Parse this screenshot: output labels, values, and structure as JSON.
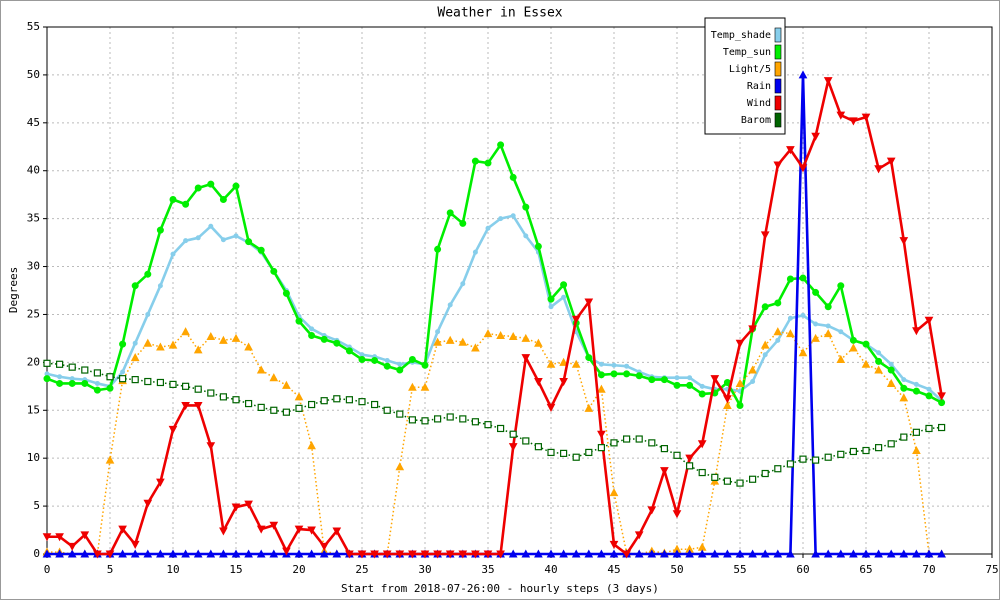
{
  "chart_data": {
    "type": "line",
    "title": "Weather in Essex",
    "x_label": "Start from 2018-07-26:00 - hourly steps (3 days)",
    "y_label": "Degrees",
    "x": [
      0,
      1,
      2,
      3,
      4,
      5,
      6,
      7,
      8,
      9,
      10,
      11,
      12,
      13,
      14,
      15,
      16,
      17,
      18,
      19,
      20,
      21,
      22,
      23,
      24,
      25,
      26,
      27,
      28,
      29,
      30,
      31,
      32,
      33,
      34,
      35,
      36,
      37,
      38,
      39,
      40,
      41,
      42,
      43,
      44,
      45,
      46,
      47,
      48,
      49,
      50,
      51,
      52,
      53,
      54,
      55,
      56,
      57,
      58,
      59,
      60,
      61,
      62,
      63,
      64,
      65,
      66,
      67,
      68,
      69,
      70,
      71
    ],
    "xlim": [
      0,
      75
    ],
    "xticks": [
      0,
      5,
      10,
      15,
      20,
      25,
      30,
      35,
      40,
      45,
      50,
      55,
      60,
      65,
      70,
      75
    ],
    "ylim": [
      0,
      55
    ],
    "yticks": [
      0,
      5,
      10,
      15,
      20,
      25,
      30,
      35,
      40,
      45,
      50,
      55
    ],
    "grid": true,
    "legend": "upper right",
    "series": [
      {
        "name": "Temp_shade",
        "color": "#87ceeb",
        "marker": "dot",
        "line_style": "solid",
        "values": [
          18.8,
          18.5,
          18.3,
          18.2,
          17.8,
          17.5,
          19,
          22,
          25,
          28,
          31.3,
          32.7,
          33,
          34.2,
          32.8,
          33.2,
          32.5,
          31.5,
          29.5,
          27.5,
          24.8,
          23.5,
          22.8,
          22.3,
          21.6,
          20.8,
          20.6,
          20.2,
          19.8,
          20,
          19.8,
          23.2,
          26,
          28.2,
          31.5,
          34,
          35,
          35.3,
          33.2,
          31.5,
          25.8,
          26.8,
          23.2,
          20.5,
          19.8,
          19.7,
          19.6,
          19,
          18.5,
          18.4,
          18.4,
          18.4,
          17.5,
          17.2,
          17.2,
          17,
          18,
          20.8,
          22.3,
          24.6,
          24.9,
          24,
          23.8,
          23.2,
          22.3,
          21.9,
          21,
          19.8,
          18.2,
          17.7,
          17.2,
          16
        ]
      },
      {
        "name": "Temp_sun",
        "color": "#00ee00",
        "marker": "circle",
        "line_style": "solid",
        "values": [
          18.3,
          17.8,
          17.8,
          17.8,
          17.1,
          17.3,
          21.9,
          28,
          29.2,
          33.8,
          37,
          36.5,
          38.2,
          38.6,
          37,
          38.4,
          32.6,
          31.7,
          29.5,
          27.2,
          24.3,
          22.8,
          22.4,
          22,
          21.2,
          20.3,
          20.2,
          19.6,
          19.2,
          20.3,
          19.7,
          31.8,
          35.6,
          34.5,
          41,
          40.8,
          42.7,
          39.3,
          36.2,
          32.1,
          26.6,
          28.1,
          24.1,
          20.5,
          18.7,
          18.8,
          18.8,
          18.6,
          18.2,
          18.2,
          17.6,
          17.6,
          16.7,
          16.8,
          17.9,
          15.5,
          23.5,
          25.8,
          26.2,
          28.7,
          28.8,
          27.3,
          25.8,
          28,
          22.3,
          21.9,
          20.1,
          19.2,
          17.3,
          17,
          16.5,
          15.8
        ]
      },
      {
        "name": "Light/5",
        "color": "#ffa500",
        "marker": "triangle-up",
        "line_style": "dotted",
        "values": [
          0.2,
          0.2,
          0,
          0,
          0,
          9.8,
          18.1,
          20.5,
          22,
          21.6,
          21.8,
          23.2,
          21.3,
          22.7,
          22.3,
          22.5,
          21.6,
          19.2,
          18.4,
          17.6,
          16.4,
          11.3,
          0.3,
          0,
          0,
          0,
          0,
          0,
          9.1,
          17.4,
          17.4,
          22.1,
          22.3,
          22.1,
          21.5,
          23,
          22.8,
          22.7,
          22.5,
          22,
          19.8,
          20,
          19.8,
          15.2,
          17.2,
          6.4,
          0.1,
          0,
          0.3,
          0.1,
          0.5,
          0.5,
          0.7,
          7.6,
          15.5,
          17.8,
          19.2,
          21.8,
          23.2,
          23,
          21,
          22.5,
          23,
          20.3,
          21.5,
          19.8,
          19.2,
          17.8,
          16.3,
          10.8,
          0,
          0
        ]
      },
      {
        "name": "Rain",
        "color": "#0000ee",
        "marker": "triangle-up",
        "line_style": "solid",
        "values": [
          0,
          0,
          0,
          0,
          0,
          0,
          0,
          0,
          0,
          0,
          0,
          0,
          0,
          0,
          0,
          0,
          0,
          0,
          0,
          0,
          0,
          0,
          0,
          0,
          0,
          0,
          0,
          0,
          0,
          0,
          0,
          0,
          0,
          0,
          0,
          0,
          0,
          0,
          0,
          0,
          0,
          0,
          0,
          0,
          0,
          0,
          0,
          0,
          0,
          0,
          0,
          0,
          0,
          0,
          0,
          0,
          0,
          0,
          0,
          0,
          50,
          0,
          0,
          0,
          0,
          0,
          0,
          0,
          0,
          0,
          0,
          0
        ]
      },
      {
        "name": "Wind",
        "color": "#ee0000",
        "marker": "triangle-down",
        "line_style": "solid",
        "values": [
          1.8,
          1.8,
          0.8,
          2,
          0,
          0,
          2.6,
          1,
          5.3,
          7.5,
          13,
          15.5,
          15.5,
          11.3,
          2.4,
          4.9,
          5.2,
          2.6,
          3,
          0.3,
          2.6,
          2.5,
          0.8,
          2.4,
          0,
          0,
          0,
          0,
          0,
          0,
          0,
          0,
          0,
          0,
          0,
          0,
          0,
          11.2,
          20.5,
          18,
          15.3,
          18,
          24.5,
          26.3,
          12.5,
          1,
          0,
          2,
          4.6,
          8.7,
          4.2,
          10,
          11.5,
          18.3,
          16.2,
          22,
          23.5,
          33.3,
          40.6,
          42.2,
          40.3,
          43.6,
          49.4,
          45.8,
          45.2,
          45.6,
          40.2,
          41,
          32.7,
          23.3,
          24.4,
          16.5
        ]
      },
      {
        "name": "Barom",
        "color": "#006400",
        "marker": "square",
        "line_style": "dotted",
        "values": [
          19.9,
          19.8,
          19.5,
          19.2,
          18.9,
          18.5,
          18.3,
          18.2,
          18,
          17.9,
          17.7,
          17.5,
          17.2,
          16.8,
          16.4,
          16.1,
          15.7,
          15.3,
          15,
          14.8,
          15.2,
          15.6,
          16,
          16.2,
          16.1,
          15.9,
          15.6,
          15,
          14.6,
          14,
          13.9,
          14.1,
          14.3,
          14.1,
          13.8,
          13.5,
          13.1,
          12.5,
          11.8,
          11.2,
          10.6,
          10.5,
          10.1,
          10.6,
          11.1,
          11.6,
          12,
          12,
          11.6,
          11,
          10.3,
          9.2,
          8.5,
          8,
          7.6,
          7.4,
          7.8,
          8.4,
          8.9,
          9.4,
          9.9,
          9.8,
          10.1,
          10.4,
          10.7,
          10.8,
          11.1,
          11.5,
          12.2,
          12.7,
          13.1,
          13.2
        ]
      }
    ]
  }
}
